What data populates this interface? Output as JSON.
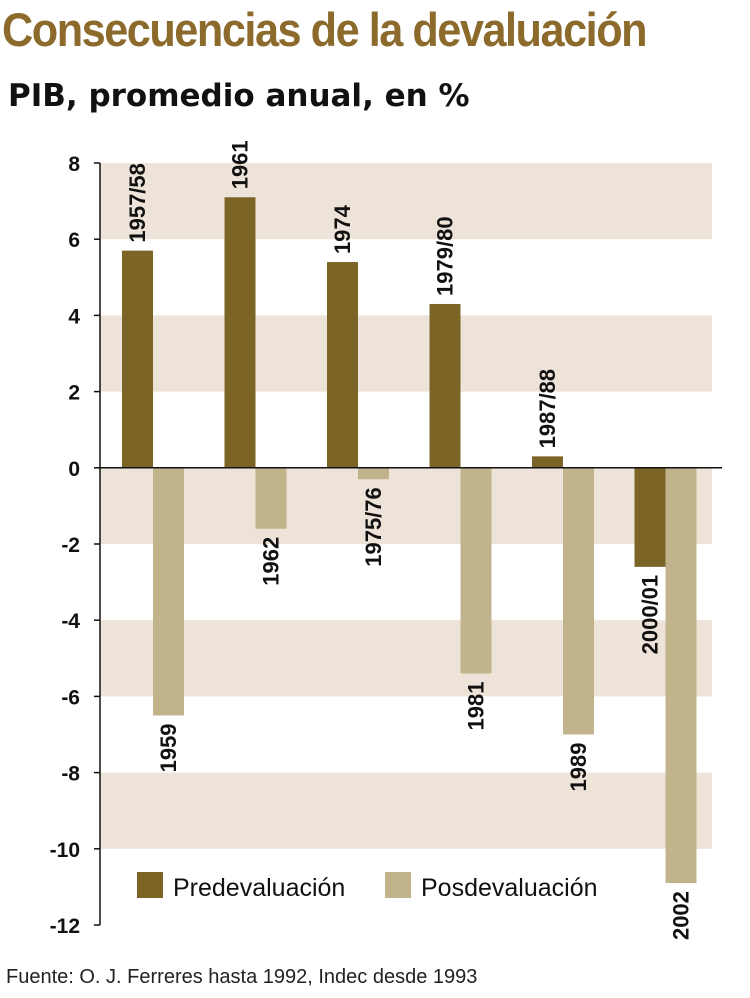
{
  "header": {
    "title": "Consecuencias de la devaluación",
    "subtitle": "PIB, promedio anual, en %"
  },
  "footer": {
    "source": "Fuente: O. J. Ferreres hasta 1992, Indec desde 1993"
  },
  "colors": {
    "title": "#8c6a2c",
    "pre": "#7b6426",
    "post": "#c1b48d",
    "band": "#eee3d8"
  },
  "chart_data": {
    "type": "bar",
    "ylim": [
      -12,
      8
    ],
    "yticks": [
      8,
      6,
      4,
      2,
      0,
      -2,
      -4,
      -6,
      -8,
      -10,
      -12
    ],
    "grid": "horizontal shaded bands",
    "legend_position": "bottom",
    "series": [
      {
        "name": "Predevaluación",
        "color": "#7b6426"
      },
      {
        "name": "Posdevaluación",
        "color": "#c1b48d"
      }
    ],
    "groups": [
      {
        "pre": {
          "label": "1957/58",
          "value": 5.7
        },
        "post": {
          "label": "1959",
          "value": -6.5
        }
      },
      {
        "pre": {
          "label": "1961",
          "value": 7.1
        },
        "post": {
          "label": "1962",
          "value": -1.6
        }
      },
      {
        "pre": {
          "label": "1974",
          "value": 5.4
        },
        "post": {
          "label": "1975/76",
          "value": -0.3
        }
      },
      {
        "pre": {
          "label": "1979/80",
          "value": 4.3
        },
        "post": {
          "label": "1981",
          "value": -5.4
        }
      },
      {
        "pre": {
          "label": "1987/88",
          "value": 0.3
        },
        "post": {
          "label": "1989",
          "value": -7.0
        }
      },
      {
        "pre": {
          "label": "2000/01",
          "value": -2.6
        },
        "post": {
          "label": "2002",
          "value": -10.9
        }
      }
    ]
  }
}
